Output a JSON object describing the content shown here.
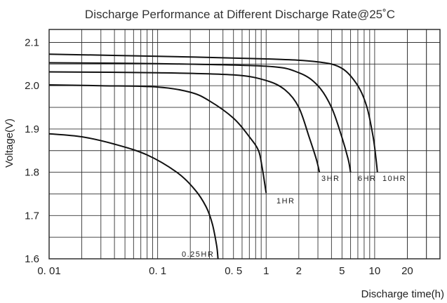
{
  "chart_data": {
    "type": "line",
    "title": "Discharge Performance at Different Discharge Rate@25˚C",
    "xlabel": "Discharge time(h)",
    "ylabel": "Voltage(V)",
    "x_scale": "log",
    "xlim": [
      0.01,
      40
    ],
    "ylim": [
      1.6,
      2.13
    ],
    "grid": true,
    "x_ticks": [
      {
        "value": 0.01,
        "label": "0. 01"
      },
      {
        "value": 0.1,
        "label": "0. 1"
      },
      {
        "value": 0.5,
        "label": "0. 5"
      },
      {
        "value": 1,
        "label": "1"
      },
      {
        "value": 2,
        "label": "2"
      },
      {
        "value": 5,
        "label": "5"
      },
      {
        "value": 10,
        "label": "10"
      },
      {
        "value": 20,
        "label": "20"
      }
    ],
    "y_ticks": [
      {
        "value": 1.6,
        "label": "1.6"
      },
      {
        "value": 1.7,
        "label": "1.7"
      },
      {
        "value": 1.8,
        "label": "1.8"
      },
      {
        "value": 1.9,
        "label": "1.9"
      },
      {
        "value": 2.0,
        "label": "2.0"
      },
      {
        "value": 2.1,
        "label": "2.1"
      }
    ],
    "series": [
      {
        "name": "0.25HR",
        "points": [
          [
            0.01,
            1.889
          ],
          [
            0.02,
            1.882
          ],
          [
            0.04,
            1.865
          ],
          [
            0.08,
            1.84
          ],
          [
            0.15,
            1.8
          ],
          [
            0.22,
            1.76
          ],
          [
            0.28,
            1.72
          ],
          [
            0.32,
            1.68
          ],
          [
            0.35,
            1.63
          ],
          [
            0.36,
            1.6
          ]
        ]
      },
      {
        "name": "1HR",
        "points": [
          [
            0.01,
            2.002
          ],
          [
            0.03,
            2.0
          ],
          [
            0.1,
            1.997
          ],
          [
            0.2,
            1.985
          ],
          [
            0.3,
            1.965
          ],
          [
            0.5,
            1.925
          ],
          [
            0.7,
            1.882
          ],
          [
            0.85,
            1.85
          ],
          [
            0.92,
            1.81
          ],
          [
            1.0,
            1.752
          ]
        ]
      },
      {
        "name": "3HR",
        "points": [
          [
            0.01,
            2.032
          ],
          [
            0.1,
            2.03
          ],
          [
            0.5,
            2.025
          ],
          [
            1.0,
            2.012
          ],
          [
            1.5,
            1.99
          ],
          [
            2.0,
            1.95
          ],
          [
            2.5,
            1.88
          ],
          [
            2.9,
            1.83
          ],
          [
            3.1,
            1.8
          ]
        ]
      },
      {
        "name": "6HR",
        "points": [
          [
            0.01,
            2.053
          ],
          [
            0.1,
            2.051
          ],
          [
            1.0,
            2.045
          ],
          [
            2.0,
            2.03
          ],
          [
            3.0,
            2.0
          ],
          [
            4.0,
            1.95
          ],
          [
            5.0,
            1.88
          ],
          [
            5.7,
            1.83
          ],
          [
            6.0,
            1.8
          ]
        ]
      },
      {
        "name": "10HR",
        "points": [
          [
            0.01,
            2.073
          ],
          [
            0.1,
            2.068
          ],
          [
            1.0,
            2.062
          ],
          [
            3.0,
            2.055
          ],
          [
            5.0,
            2.04
          ],
          [
            7.0,
            2.0
          ],
          [
            8.5,
            1.95
          ],
          [
            9.7,
            1.88
          ],
          [
            10.3,
            1.83
          ],
          [
            10.6,
            1.8
          ]
        ]
      }
    ]
  }
}
